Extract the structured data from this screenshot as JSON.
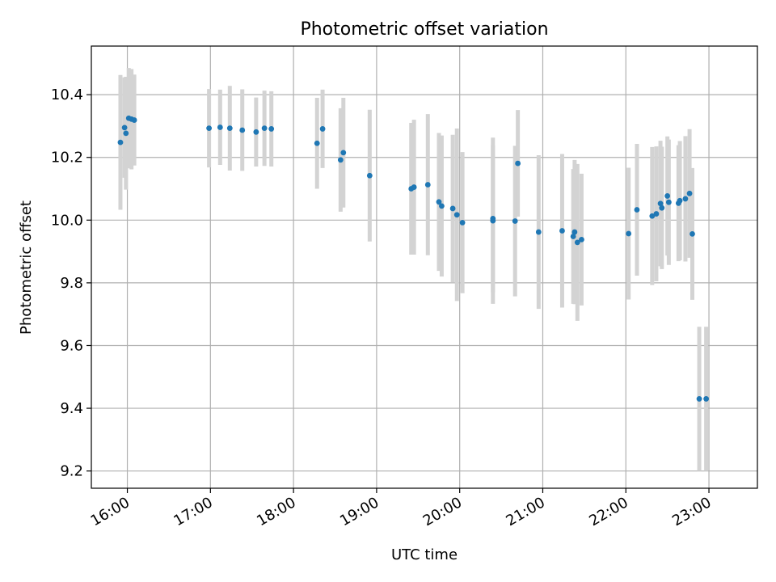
{
  "chart_data": {
    "type": "scatter",
    "title": "Photometric offset variation",
    "xlabel": "UTC time",
    "ylabel": "Photometric offset",
    "xlim": [
      "15:34",
      "23:35"
    ],
    "ylim": [
      9.145,
      10.555
    ],
    "grid": true,
    "x_ticks": [
      "16:00",
      "17:00",
      "18:00",
      "19:00",
      "20:00",
      "21:00",
      "22:00",
      "23:00"
    ],
    "y_ticks": [
      "9.2",
      "9.4",
      "9.6",
      "9.8",
      "10.0",
      "10.2",
      "10.4"
    ],
    "marker_color": "#1f77b4",
    "errorbar_color": "#d3d3d3",
    "series": [
      {
        "x": [
          "15:55",
          "15:58",
          "15:59",
          "16:01",
          "16:03",
          "16:05",
          "16:59",
          "17:07",
          "17:14",
          "17:23",
          "17:33",
          "17:39",
          "17:44",
          "18:17",
          "18:21",
          "18:34",
          "18:36",
          "18:55",
          "19:25",
          "19:27",
          "19:37",
          "19:45",
          "19:47",
          "19:55",
          "19:58",
          "20:02",
          "20:24",
          "20:24",
          "20:40",
          "20:42",
          "20:57",
          "21:14",
          "21:22",
          "21:23",
          "21:25",
          "21:28",
          "22:02",
          "22:08",
          "22:19",
          "22:22",
          "22:25",
          "22:26",
          "22:30",
          "22:31",
          "22:38",
          "22:39",
          "22:43",
          "22:46",
          "22:48",
          "22:53",
          "22:58"
        ],
        "y": [
          10.248,
          10.295,
          10.277,
          10.325,
          10.322,
          10.319,
          10.293,
          10.296,
          10.293,
          10.287,
          10.281,
          10.293,
          10.291,
          10.245,
          10.291,
          10.192,
          10.215,
          10.142,
          10.1,
          10.105,
          10.113,
          10.058,
          10.045,
          10.037,
          10.017,
          9.992,
          9.998,
          10.005,
          9.997,
          10.181,
          9.962,
          9.966,
          9.948,
          9.962,
          9.929,
          9.938,
          9.957,
          10.033,
          10.013,
          10.02,
          10.053,
          10.039,
          10.077,
          10.057,
          10.054,
          10.062,
          10.068,
          10.085,
          9.956,
          9.43,
          9.43
        ],
        "yerr": [
          0.215,
          0.16,
          0.18,
          0.16,
          0.16,
          0.145,
          0.125,
          0.12,
          0.135,
          0.13,
          0.11,
          0.12,
          0.12,
          0.145,
          0.125,
          0.165,
          0.175,
          0.21,
          0.21,
          0.215,
          0.225,
          0.22,
          0.225,
          0.235,
          0.275,
          0.225,
          0.265,
          0.235,
          0.24,
          0.17,
          0.245,
          0.245,
          0.215,
          0.23,
          0.25,
          0.21,
          0.21,
          0.21,
          0.22,
          0.215,
          0.2,
          0.195,
          0.19,
          0.2,
          0.185,
          0.19,
          0.2,
          0.205,
          0.21,
          0.23,
          0.23
        ]
      }
    ]
  }
}
